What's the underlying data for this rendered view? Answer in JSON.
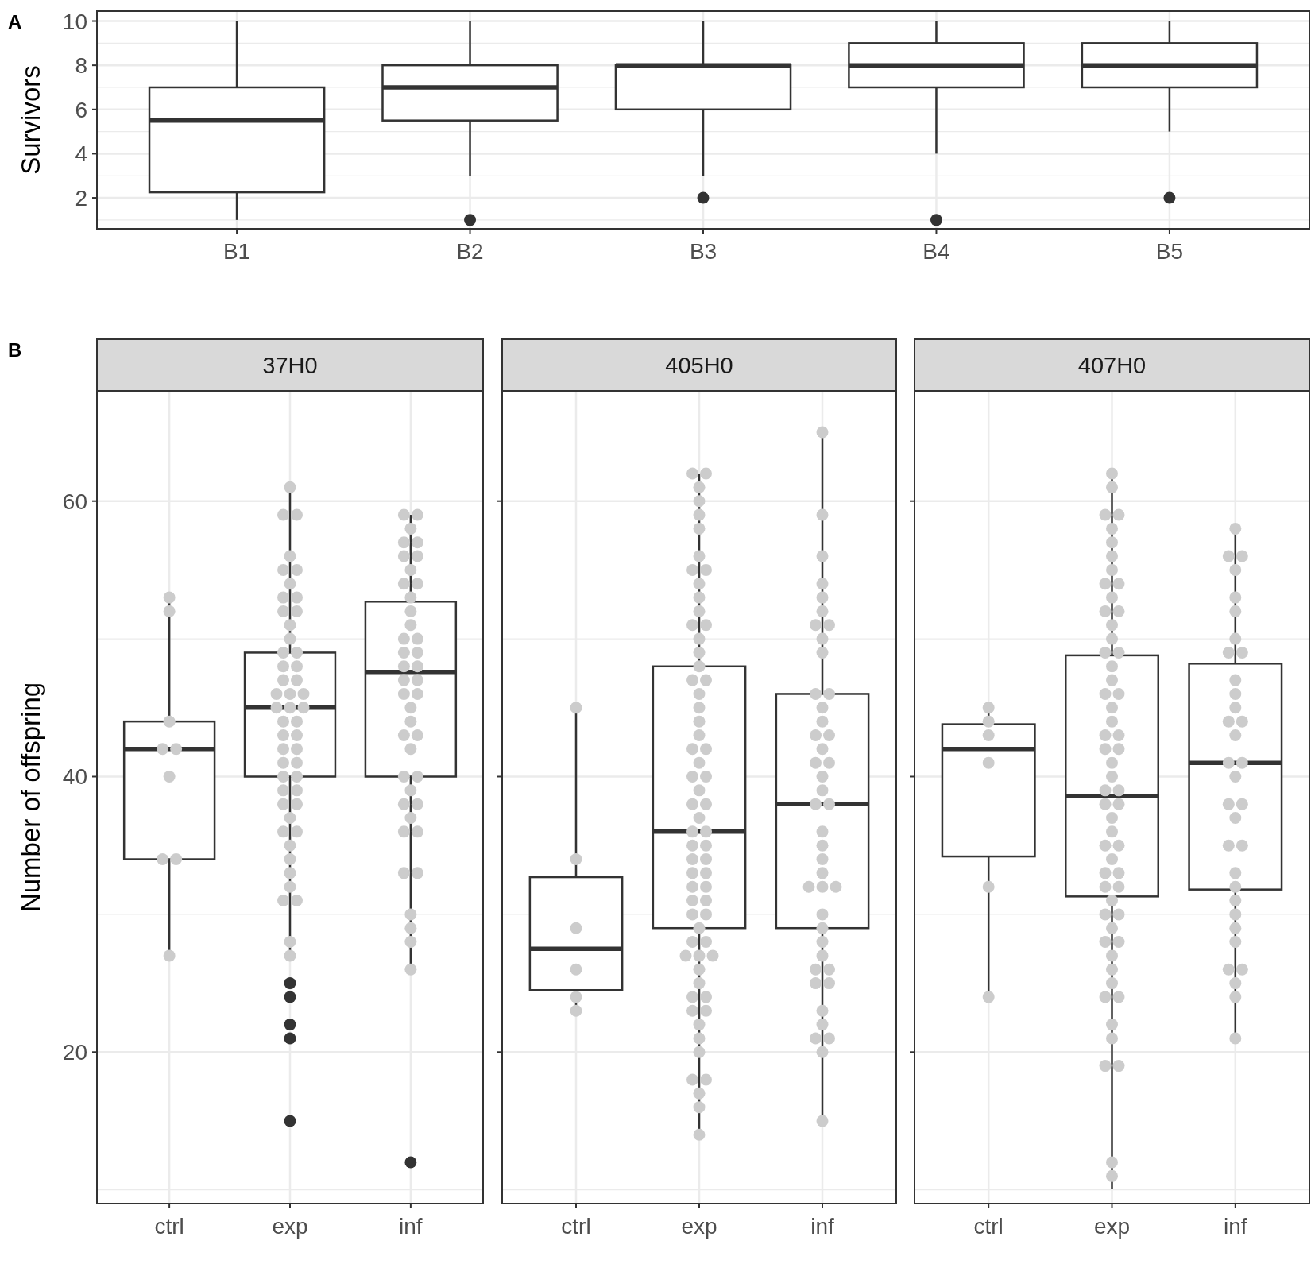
{
  "chart_data": [
    {
      "type": "box",
      "annotations": [
        "A"
      ],
      "ylabel": "Survivors",
      "categories": [
        "B1",
        "B2",
        "B3",
        "B4",
        "B5"
      ],
      "color": "#333333",
      "ylim": [
        0.6,
        10.45
      ],
      "yticks": [
        2,
        4,
        6,
        8,
        10
      ],
      "grid": true,
      "boxes": [
        {
          "low": 1,
          "q1": 2.25,
          "median": 5.5,
          "q3": 7,
          "high": 10
        },
        {
          "low": 3,
          "q1": 5.5,
          "median": 7,
          "q3": 8,
          "high": 10,
          "outliers": [
            1
          ]
        },
        {
          "low": 3,
          "q1": 6,
          "median": 8,
          "q3": 8,
          "high": 10,
          "outliers": [
            2
          ]
        },
        {
          "low": 4,
          "q1": 7,
          "median": 8,
          "q3": 9,
          "high": 10,
          "outliers": [
            1
          ]
        },
        {
          "low": 5,
          "q1": 7,
          "median": 8,
          "q3": 9,
          "high": 10,
          "outliers": [
            2
          ]
        }
      ]
    },
    {
      "type": "box",
      "annotations": [
        "B"
      ],
      "title": "37H0",
      "ylabel": "Number of offspring",
      "categories": [
        "ctrl",
        "exp",
        "inf"
      ],
      "color": "#333333",
      "ylim": [
        9,
        68
      ],
      "yticks": [
        20,
        40,
        60
      ],
      "grid": true,
      "boxes": [
        {
          "low": 27,
          "q1": 34,
          "median": 42,
          "q3": 44,
          "high": 53
        },
        {
          "low": 27,
          "q1": 40,
          "median": 45,
          "q3": 49,
          "high": 61,
          "outliers": [
            25,
            24,
            22,
            21,
            15
          ]
        },
        {
          "low": 26,
          "q1": 40,
          "median": 47.6,
          "q3": 52.7,
          "high": 59,
          "outliers": [
            12
          ]
        }
      ],
      "series": [
        {
          "type": "scatter",
          "color": "#cccccc",
          "x": [
            "ctrl",
            "ctrl",
            "ctrl",
            "ctrl",
            "ctrl",
            "ctrl",
            "ctrl",
            "ctrl",
            "ctrl"
          ],
          "values": [
            53,
            52,
            44,
            42,
            42,
            40,
            34,
            34,
            27
          ]
        },
        {
          "type": "scatter",
          "color": "#cccccc",
          "x": [
            "exp",
            "exp",
            "exp",
            "exp",
            "exp",
            "exp",
            "exp",
            "exp",
            "exp",
            "exp",
            "exp",
            "exp",
            "exp",
            "exp",
            "exp",
            "exp",
            "exp",
            "exp",
            "exp",
            "exp",
            "exp",
            "exp",
            "exp",
            "exp",
            "exp",
            "exp",
            "exp",
            "exp",
            "exp",
            "exp",
            "exp",
            "exp",
            "exp",
            "exp",
            "exp",
            "exp",
            "exp",
            "exp",
            "exp",
            "exp",
            "exp",
            "exp",
            "exp",
            "exp",
            "exp",
            "exp",
            "exp",
            "exp",
            "exp",
            "exp"
          ],
          "values": [
            61,
            59,
            59,
            56,
            55,
            55,
            54,
            53,
            53,
            52,
            52,
            51,
            50,
            49,
            49,
            48,
            48,
            47,
            47,
            46,
            46,
            46,
            45,
            45,
            45,
            44,
            44,
            43,
            43,
            42,
            42,
            41,
            41,
            40,
            40,
            39,
            39,
            38,
            38,
            37,
            36,
            36,
            35,
            34,
            33,
            32,
            31,
            31,
            28,
            27
          ]
        },
        {
          "type": "scatter",
          "color": "#cccccc",
          "x": [
            "inf",
            "inf",
            "inf",
            "inf",
            "inf",
            "inf",
            "inf",
            "inf",
            "inf",
            "inf",
            "inf",
            "inf",
            "inf",
            "inf",
            "inf",
            "inf",
            "inf",
            "inf",
            "inf",
            "inf",
            "inf",
            "inf",
            "inf",
            "inf",
            "inf",
            "inf",
            "inf",
            "inf",
            "inf",
            "inf",
            "inf",
            "inf",
            "inf",
            "inf",
            "inf",
            "inf",
            "inf",
            "inf",
            "inf",
            "inf",
            "inf",
            "inf"
          ],
          "values": [
            59,
            59,
            58,
            57,
            57,
            56,
            56,
            55,
            54,
            54,
            53,
            52,
            51,
            50,
            50,
            49,
            49,
            48,
            48,
            47,
            47,
            46,
            46,
            45,
            44,
            43,
            43,
            42,
            40,
            40,
            39,
            38,
            38,
            37,
            36,
            36,
            33,
            33,
            30,
            29,
            28,
            26
          ]
        }
      ]
    },
    {
      "type": "box",
      "title": "405H0",
      "categories": [
        "ctrl",
        "exp",
        "inf"
      ],
      "color": "#333333",
      "ylim": [
        9,
        68
      ],
      "yticks": [
        20,
        40,
        60
      ],
      "grid": true,
      "tick_labels": "x",
      "boxes": [
        {
          "low": 23,
          "q1": 24.5,
          "median": 27.5,
          "q3": 32.7,
          "high": 45
        },
        {
          "low": 14,
          "q1": 29,
          "median": 36,
          "q3": 48,
          "high": 62
        },
        {
          "low": 15,
          "q1": 29,
          "median": 38,
          "q3": 46,
          "high": 65
        }
      ],
      "series": [
        {
          "type": "scatter",
          "color": "#cccccc",
          "x": [
            "ctrl",
            "ctrl",
            "ctrl",
            "ctrl",
            "ctrl",
            "ctrl"
          ],
          "values": [
            45,
            34,
            29,
            26,
            24,
            23
          ]
        },
        {
          "type": "scatter",
          "color": "#cccccc",
          "x": [
            "exp",
            "exp",
            "exp",
            "exp",
            "exp",
            "exp",
            "exp",
            "exp",
            "exp",
            "exp",
            "exp",
            "exp",
            "exp",
            "exp",
            "exp",
            "exp",
            "exp",
            "exp",
            "exp",
            "exp",
            "exp",
            "exp",
            "exp",
            "exp",
            "exp",
            "exp",
            "exp",
            "exp",
            "exp",
            "exp",
            "exp",
            "exp",
            "exp",
            "exp",
            "exp",
            "exp",
            "exp",
            "exp",
            "exp",
            "exp",
            "exp",
            "exp",
            "exp",
            "exp",
            "exp",
            "exp",
            "exp",
            "exp",
            "exp",
            "exp",
            "exp",
            "exp",
            "exp",
            "exp",
            "exp",
            "exp",
            "exp",
            "exp",
            "exp",
            "exp",
            "exp",
            "exp",
            "exp",
            "exp",
            "exp",
            "exp"
          ],
          "values": [
            62,
            62,
            61,
            60,
            59,
            58,
            56,
            55,
            55,
            54,
            53,
            52,
            51,
            51,
            50,
            49,
            48,
            47,
            47,
            46,
            45,
            44,
            43,
            42,
            42,
            41,
            40,
            40,
            39,
            38,
            38,
            37,
            36,
            36,
            35,
            35,
            34,
            34,
            33,
            33,
            32,
            32,
            31,
            31,
            30,
            30,
            29,
            28,
            28,
            27,
            27,
            27,
            26,
            25,
            24,
            24,
            23,
            23,
            22,
            21,
            20,
            18,
            18,
            17,
            16,
            14
          ]
        },
        {
          "type": "scatter",
          "color": "#cccccc",
          "x": [
            "inf",
            "inf",
            "inf",
            "inf",
            "inf",
            "inf",
            "inf",
            "inf",
            "inf",
            "inf",
            "inf",
            "inf",
            "inf",
            "inf",
            "inf",
            "inf",
            "inf",
            "inf",
            "inf",
            "inf",
            "inf",
            "inf",
            "inf",
            "inf",
            "inf",
            "inf",
            "inf",
            "inf",
            "inf",
            "inf",
            "inf",
            "inf",
            "inf",
            "inf",
            "inf",
            "inf",
            "inf",
            "inf",
            "inf",
            "inf",
            "inf",
            "inf",
            "inf",
            "inf"
          ],
          "values": [
            65,
            59,
            56,
            54,
            53,
            52,
            51,
            51,
            50,
            49,
            46,
            46,
            45,
            44,
            43,
            43,
            42,
            41,
            41,
            40,
            39,
            38,
            38,
            36,
            35,
            34,
            33,
            32,
            32,
            32,
            30,
            29,
            28,
            27,
            26,
            26,
            25,
            25,
            23,
            22,
            21,
            21,
            20,
            15
          ]
        }
      ]
    },
    {
      "type": "box",
      "title": "407H0",
      "categories": [
        "ctrl",
        "exp",
        "inf"
      ],
      "color": "#333333",
      "ylim": [
        9,
        68
      ],
      "yticks": [
        20,
        40,
        60
      ],
      "grid": true,
      "tick_labels": "x",
      "boxes": [
        {
          "low": 24,
          "q1": 34.2,
          "median": 42,
          "q3": 43.8,
          "high": 45
        },
        {
          "low": 10.1,
          "q1": 31.3,
          "median": 38.6,
          "q3": 48.8,
          "high": 62
        },
        {
          "low": 21,
          "q1": 31.8,
          "median": 41,
          "q3": 48.2,
          "high": 58
        }
      ],
      "series": [
        {
          "type": "scatter",
          "color": "#cccccc",
          "x": [
            "ctrl",
            "ctrl",
            "ctrl",
            "ctrl",
            "ctrl",
            "ctrl"
          ],
          "values": [
            45,
            44,
            43,
            41,
            32,
            24
          ]
        },
        {
          "type": "scatter",
          "color": "#cccccc",
          "x": [
            "exp",
            "exp",
            "exp",
            "exp",
            "exp",
            "exp",
            "exp",
            "exp",
            "exp",
            "exp",
            "exp",
            "exp",
            "exp",
            "exp",
            "exp",
            "exp",
            "exp",
            "exp",
            "exp",
            "exp",
            "exp",
            "exp",
            "exp",
            "exp",
            "exp",
            "exp",
            "exp",
            "exp",
            "exp",
            "exp",
            "exp",
            "exp",
            "exp",
            "exp",
            "exp",
            "exp",
            "exp",
            "exp",
            "exp",
            "exp",
            "exp",
            "exp",
            "exp",
            "exp",
            "exp",
            "exp",
            "exp",
            "exp",
            "exp",
            "exp",
            "exp",
            "exp",
            "exp",
            "exp",
            "exp",
            "exp",
            "exp",
            "exp",
            "exp"
          ],
          "values": [
            62,
            61,
            59,
            59,
            58,
            57,
            56,
            55,
            54,
            54,
            53,
            52,
            52,
            51,
            50,
            49,
            49,
            48,
            47,
            46,
            46,
            45,
            44,
            43,
            43,
            42,
            42,
            41,
            40,
            39,
            39,
            38,
            38,
            37,
            36,
            35,
            35,
            34,
            33,
            33,
            32,
            32,
            31,
            30,
            30,
            29,
            28,
            28,
            27,
            26,
            25,
            24,
            24,
            22,
            21,
            19,
            19,
            12,
            11
          ]
        },
        {
          "type": "scatter",
          "color": "#cccccc",
          "x": [
            "inf",
            "inf",
            "inf",
            "inf",
            "inf",
            "inf",
            "inf",
            "inf",
            "inf",
            "inf",
            "inf",
            "inf",
            "inf",
            "inf",
            "inf",
            "inf",
            "inf",
            "inf",
            "inf",
            "inf",
            "inf",
            "inf",
            "inf",
            "inf",
            "inf",
            "inf",
            "inf",
            "inf",
            "inf",
            "inf",
            "inf",
            "inf",
            "inf",
            "inf"
          ],
          "values": [
            58,
            56,
            56,
            55,
            53,
            52,
            50,
            49,
            49,
            47,
            46,
            45,
            44,
            44,
            43,
            41,
            41,
            40,
            38,
            38,
            37,
            35,
            35,
            33,
            32,
            31,
            30,
            29,
            28,
            26,
            26,
            25,
            24,
            21
          ]
        }
      ]
    }
  ]
}
